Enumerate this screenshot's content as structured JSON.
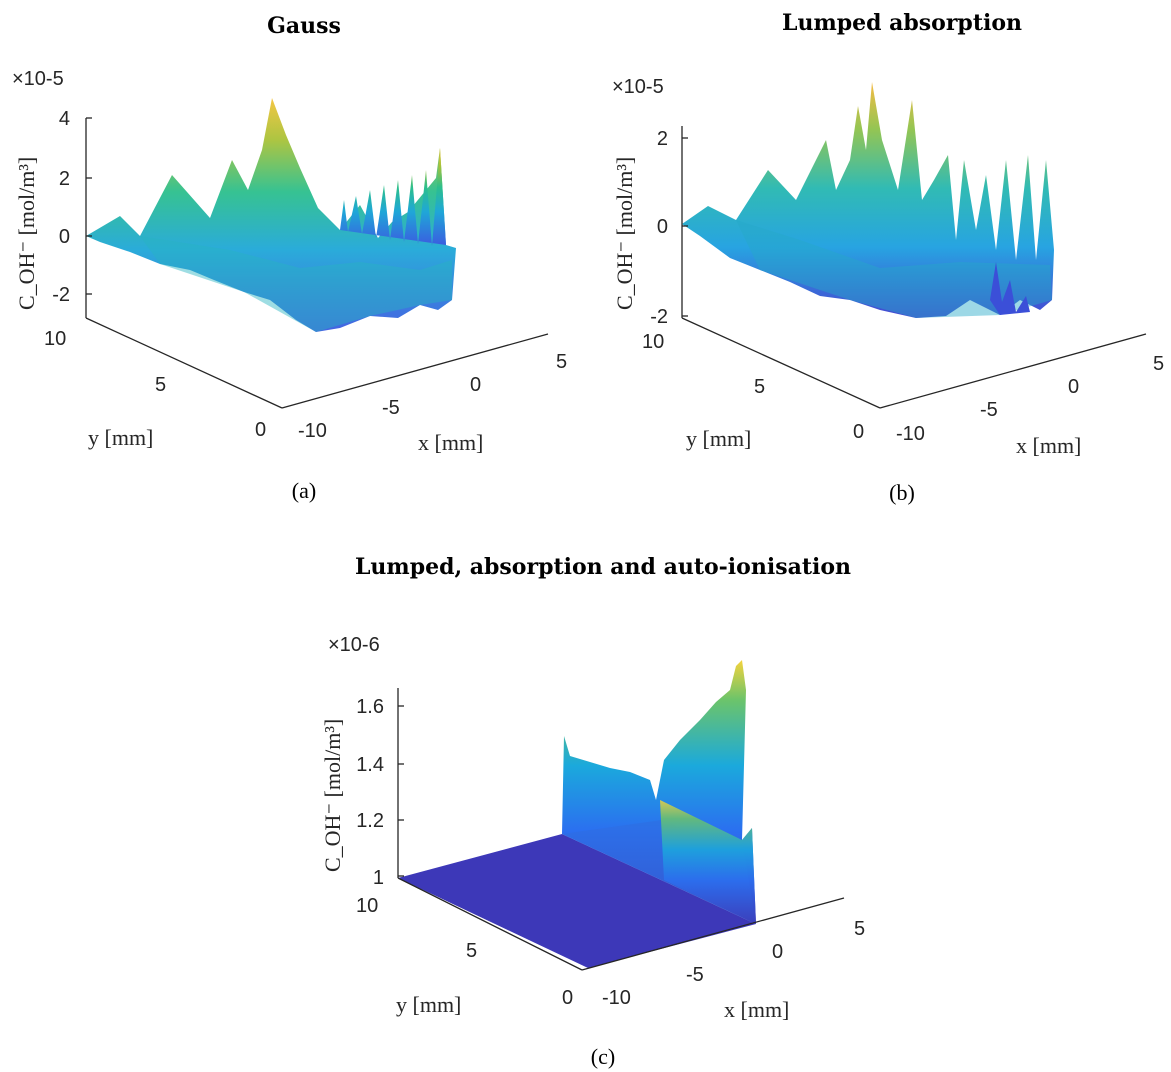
{
  "chart_data": [
    {
      "type": "surface",
      "panel": "(a)",
      "title": "Gauss",
      "xlabel": "x [mm]",
      "ylabel": "y [mm]",
      "zlabel": "C_OH⁻ [mol/m³]",
      "z_exponent": "×10-5",
      "xlim": [
        -12,
        5
      ],
      "ylim": [
        0,
        10
      ],
      "zlim": [
        -2.5,
        4
      ],
      "xticks": [
        -10,
        -5,
        0,
        5
      ],
      "yticks": [
        0,
        5,
        10
      ],
      "zticks": [
        -2,
        0,
        2,
        4
      ],
      "ridge_profile": {
        "x": [
          -10,
          -8,
          -6,
          -4,
          -2,
          0,
          2,
          4,
          5
        ],
        "z": [
          0.1,
          0.4,
          1.2,
          1.8,
          3.9,
          1.5,
          1.0,
          1.4,
          1.9
        ]
      },
      "colormap": [
        "#3e26a8",
        "#2d6ff5",
        "#18a9e0",
        "#2ec090",
        "#b7c233",
        "#f6bf3a",
        "#f9fb0e"
      ]
    },
    {
      "type": "surface",
      "panel": "(b)",
      "title": "Lumped absorption",
      "xlabel": "x [mm]",
      "ylabel": "y [mm]",
      "zlabel": "C_OH⁻ [mol/m³]",
      "z_exponent": "×10-5",
      "xlim": [
        -12,
        5
      ],
      "ylim": [
        0,
        10
      ],
      "zlim": [
        -2,
        2.4
      ],
      "xticks": [
        -10,
        -5,
        0,
        5
      ],
      "yticks": [
        0,
        5,
        10
      ],
      "zticks": [
        -2,
        0,
        2
      ],
      "ridge_profile": {
        "x": [
          -10,
          -8,
          -6,
          -4,
          -2,
          0,
          2,
          4,
          5
        ],
        "z": [
          0.1,
          0.5,
          1.0,
          2.3,
          1.5,
          1.0,
          0.9,
          1.1,
          1.6
        ]
      },
      "colormap": [
        "#3e26a8",
        "#2d6ff5",
        "#18a9e0",
        "#2ec090",
        "#b7c233",
        "#f6bf3a",
        "#f9fb0e"
      ]
    },
    {
      "type": "surface",
      "panel": "(c)",
      "title": "Lumped, absorption and auto-ionisation",
      "xlabel": "x [mm]",
      "ylabel": "y [mm]",
      "zlabel": "C_OH⁻ [mol/m³]",
      "z_exponent": "×10-6",
      "xlim": [
        -12,
        5
      ],
      "ylim": [
        0,
        10
      ],
      "zlim": [
        1,
        1.7
      ],
      "xticks": [
        -10,
        -5,
        0,
        5
      ],
      "yticks": [
        0,
        5,
        10
      ],
      "zticks": [
        1,
        1.2,
        1.4,
        1.6
      ],
      "ridge_profile": {
        "x": [
          -1,
          0,
          1,
          2,
          3,
          4,
          5
        ],
        "z": [
          1.46,
          1.42,
          1.4,
          1.38,
          1.36,
          1.45,
          1.65
        ]
      },
      "baseline": 1.0,
      "colormap": [
        "#3e26a8",
        "#2d6ff5",
        "#18a9e0",
        "#2ec090",
        "#b7c233",
        "#f6bf3a",
        "#f9fb0e"
      ]
    }
  ]
}
